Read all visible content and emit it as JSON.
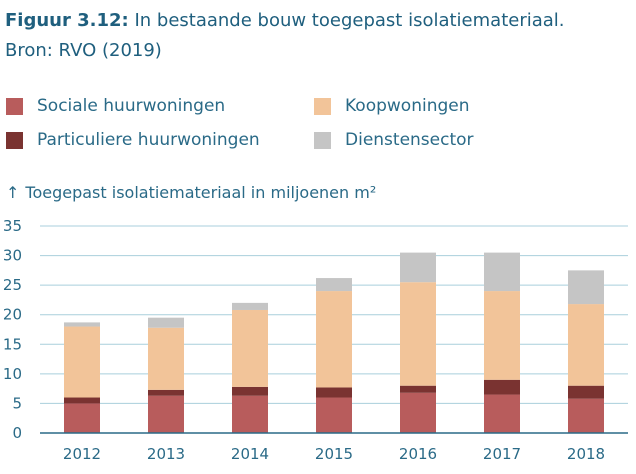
{
  "figure": {
    "label": "Figuur 3.12:",
    "title": " In bestaande bouw toegepast isolatiemateriaal.",
    "source": "Bron: RVO (2019)"
  },
  "legend": [
    {
      "name": "Sociale huurwoningen",
      "color": "#b85c5c"
    },
    {
      "name": "Koopwoningen",
      "color": "#f2c499"
    },
    {
      "name": "Particuliere huurwoningen",
      "color": "#7a3331"
    },
    {
      "name": "Dienstensector",
      "color": "#c5c5c5"
    }
  ],
  "chart_data": {
    "type": "bar",
    "stacked": true,
    "ylabel_arrow": "↑",
    "ylabel": "Toegepast isolatiemateriaal in miljoenen m²",
    "ylim": [
      0,
      35
    ],
    "yticks": [
      0,
      5,
      10,
      15,
      20,
      25,
      30,
      35
    ],
    "grid": true,
    "categories": [
      "2012",
      "2013",
      "2014",
      "2015",
      "2016",
      "2017",
      "2018"
    ],
    "series": [
      {
        "name": "Sociale huurwoningen",
        "color": "#b85c5c",
        "values": [
          5.0,
          6.3,
          6.3,
          6.0,
          6.8,
          6.5,
          5.8
        ]
      },
      {
        "name": "Particuliere huurwoningen",
        "color": "#7a3331",
        "values": [
          1.0,
          1.0,
          1.5,
          1.7,
          1.2,
          2.5,
          2.2
        ]
      },
      {
        "name": "Koopwoningen",
        "color": "#f2c499",
        "values": [
          12.0,
          10.5,
          13.0,
          16.3,
          17.5,
          15.0,
          13.8
        ]
      },
      {
        "name": "Dienstensector",
        "color": "#c5c5c5",
        "values": [
          0.7,
          1.7,
          1.2,
          2.2,
          5.0,
          6.5,
          5.7
        ]
      }
    ]
  }
}
